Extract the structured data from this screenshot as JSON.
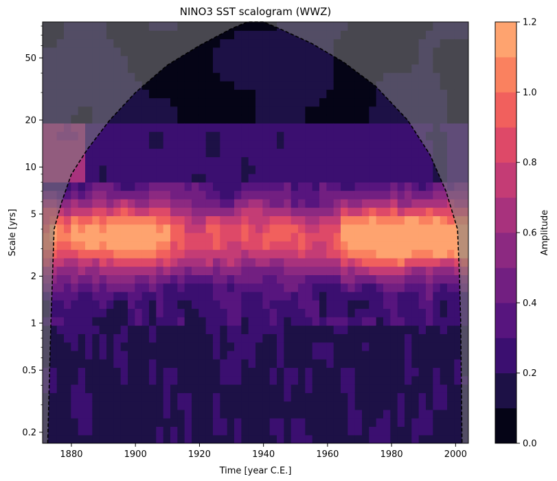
{
  "chart_data": {
    "type": "heatmap",
    "title": "NINO3 SST scalogram (WWZ)",
    "xlabel": "Time [year C.E.]",
    "ylabel": "Scale [yrs]",
    "x_range": [
      1871,
      2004
    ],
    "y_range": [
      0.17,
      85
    ],
    "y_scale": "log",
    "x_ticks": [
      1880,
      1900,
      1920,
      1940,
      1960,
      1980,
      2000
    ],
    "y_ticks": [
      0.2,
      0.5,
      1,
      2,
      5,
      10,
      20,
      50
    ],
    "x_tick_labels": [
      "1880",
      "1900",
      "1920",
      "1940",
      "1960",
      "1980",
      "2000"
    ],
    "y_tick_labels": [
      "0.2",
      "0.5",
      "1",
      "2",
      "5",
      "10",
      "20",
      "50"
    ],
    "colorbar": {
      "label": "Amplitude",
      "levels": [
        0.0,
        0.1,
        0.2,
        0.3,
        0.4,
        0.5,
        0.6,
        0.7,
        0.8,
        0.9,
        1.0,
        1.1,
        1.2
      ],
      "tick_values": [
        0.0,
        0.2,
        0.4,
        0.6,
        0.8,
        1.0,
        1.2
      ],
      "tick_labels": [
        "0.0",
        "0.2",
        "0.4",
        "0.6",
        "0.8",
        "1.0",
        "1.2"
      ],
      "colors": [
        "#050416",
        "#1d1146",
        "#3b0f70",
        "#57157e",
        "#721f81",
        "#8c2981",
        "#a8327d",
        "#c43c75",
        "#de4968",
        "#f1605d",
        "#fa815f",
        "#fea36f",
        "#fec58a",
        "#fce8a8"
      ]
    },
    "cone_of_influence": {
      "style": "dashed",
      "color": "#000000",
      "points": [
        [
          1872.6,
          0.17
        ],
        [
          1873.2,
          0.5
        ],
        [
          1873.6,
          1
        ],
        [
          1874.1,
          2
        ],
        [
          1874.6,
          4
        ],
        [
          1877,
          6
        ],
        [
          1880,
          9
        ],
        [
          1885,
          13
        ],
        [
          1892,
          20
        ],
        [
          1900,
          30
        ],
        [
          1910,
          45
        ],
        [
          1920,
          60
        ],
        [
          1930,
          77
        ],
        [
          1935,
          85
        ],
        [
          1940,
          85
        ],
        [
          1945,
          77
        ],
        [
          1955,
          62
        ],
        [
          1965,
          47
        ],
        [
          1975,
          33
        ],
        [
          1985,
          20
        ],
        [
          1992,
          12
        ],
        [
          1997,
          7
        ],
        [
          2000.6,
          4
        ],
        [
          2001.2,
          2
        ],
        [
          2001.6,
          1
        ],
        [
          2002.0,
          0.17
        ]
      ]
    },
    "masked_region": {
      "description_color": "#808080",
      "opacity": 0.55
    }
  }
}
